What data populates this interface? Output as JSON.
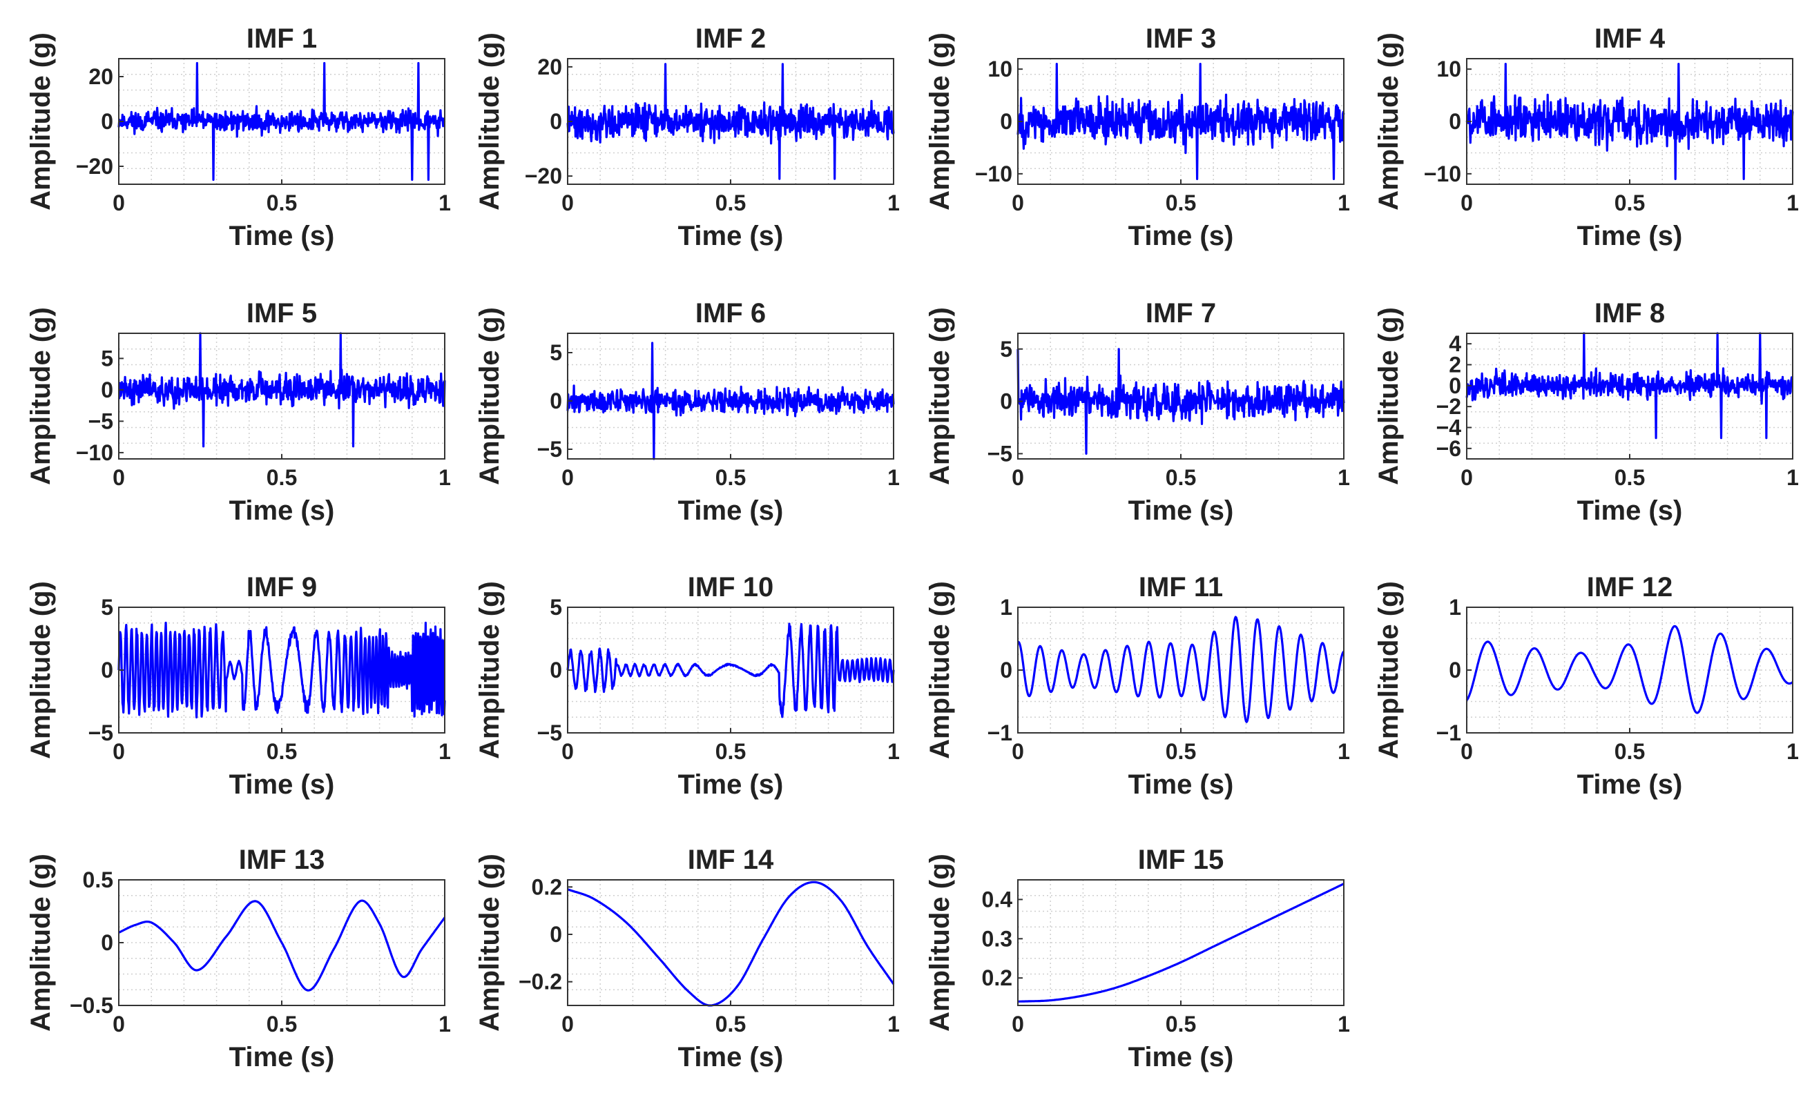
{
  "figure": {
    "xlabel": "Time (s)",
    "ylabel": "Amplitude (g)",
    "x_ticks": [
      "0",
      "0.5",
      "1"
    ],
    "line_color": "#0000ff",
    "axes_color": "#333333",
    "grid_color": "#cfcfcf"
  },
  "chart_data": [
    {
      "type": "line",
      "title": "IMF 1",
      "xlabel": "Time (s)",
      "ylabel": "Amplitude (g)",
      "xlim": [
        0,
        1
      ],
      "ylim": [
        -28,
        28
      ],
      "yticks": [
        -20,
        0,
        20
      ],
      "ytick_labels": [
        "−20",
        "0",
        "20"
      ],
      "signal": {
        "kind": "noise",
        "amp": 7,
        "spike_amp": 26,
        "seed": 11,
        "spikes": [
          0.24,
          0.29,
          0.63,
          0.9,
          0.92,
          0.95
        ]
      }
    },
    {
      "type": "line",
      "title": "IMF 2",
      "xlabel": "Time (s)",
      "ylabel": "Amplitude (g)",
      "xlim": [
        0,
        1
      ],
      "ylim": [
        -23,
        23
      ],
      "yticks": [
        -20,
        0,
        20
      ],
      "ytick_labels": [
        "−20",
        "0",
        "20"
      ],
      "signal": {
        "kind": "noise",
        "amp": 9,
        "spike_amp": 21,
        "seed": 22,
        "spikes": [
          0.3,
          0.65,
          0.66,
          0.82
        ]
      }
    },
    {
      "type": "line",
      "title": "IMF 3",
      "xlabel": "Time (s)",
      "ylabel": "Amplitude (g)",
      "xlim": [
        0,
        1
      ],
      "ylim": [
        -12,
        12
      ],
      "yticks": [
        -10,
        0,
        10
      ],
      "ytick_labels": [
        "−10",
        "0",
        "10"
      ],
      "signal": {
        "kind": "noise",
        "amp": 6,
        "spike_amp": 11,
        "seed": 33,
        "spikes": [
          0.12,
          0.55,
          0.56,
          0.97
        ]
      }
    },
    {
      "type": "line",
      "title": "IMF 4",
      "xlabel": "Time (s)",
      "ylabel": "Amplitude (g)",
      "xlim": [
        0,
        1
      ],
      "ylim": [
        -12,
        12
      ],
      "yticks": [
        -10,
        0,
        10
      ],
      "ytick_labels": [
        "−10",
        "0",
        "10"
      ],
      "signal": {
        "kind": "noise",
        "amp": 6,
        "spike_amp": 11,
        "seed": 44,
        "spikes": [
          0.12,
          0.64,
          0.65,
          0.85
        ]
      }
    },
    {
      "type": "line",
      "title": "IMF 5",
      "xlabel": "Time (s)",
      "ylabel": "Amplitude (g)",
      "xlim": [
        0,
        1
      ],
      "ylim": [
        -11,
        9
      ],
      "yticks": [
        -10,
        -5,
        0,
        5
      ],
      "ytick_labels": [
        "−10",
        "−5",
        "0",
        "5"
      ],
      "signal": {
        "kind": "noise",
        "amp": 3.5,
        "spike_amp": 9,
        "seed": 55,
        "spikes": [
          0.25,
          0.26,
          0.68,
          0.72
        ]
      }
    },
    {
      "type": "line",
      "title": "IMF 6",
      "xlabel": "Time (s)",
      "ylabel": "Amplitude (g)",
      "xlim": [
        0,
        1
      ],
      "ylim": [
        -6,
        7
      ],
      "yticks": [
        -5,
        0,
        5
      ],
      "ytick_labels": [
        "−5",
        "0",
        "5"
      ],
      "signal": {
        "kind": "noise",
        "amp": 1.8,
        "spike_amp": 6,
        "seed": 66,
        "spikes": [
          0.26,
          0.265
        ]
      }
    },
    {
      "type": "line",
      "title": "IMF 7",
      "xlabel": "Time (s)",
      "ylabel": "Amplitude (g)",
      "xlim": [
        0,
        1
      ],
      "ylim": [
        -5.5,
        6.5
      ],
      "yticks": [
        -5,
        0,
        5
      ],
      "ytick_labels": [
        "−5",
        "0",
        "5"
      ],
      "signal": {
        "kind": "noise",
        "amp": 2.4,
        "spike_amp": 5,
        "seed": 77,
        "spikes": [
          0.0,
          0.21,
          0.31
        ]
      }
    },
    {
      "type": "line",
      "title": "IMF 8",
      "xlabel": "Time (s)",
      "ylabel": "Amplitude (g)",
      "xlim": [
        0,
        1
      ],
      "ylim": [
        -7,
        5
      ],
      "yticks": [
        -6,
        -4,
        -2,
        0,
        2,
        4
      ],
      "ytick_labels": [
        "−6",
        "−4",
        "−2",
        "0",
        "2",
        "4"
      ],
      "signal": {
        "kind": "noise",
        "amp": 1.7,
        "spike_amp": 5,
        "seed": 88,
        "spikes": [
          0.36,
          0.58,
          0.77,
          0.78,
          0.9,
          0.92
        ]
      }
    },
    {
      "type": "line",
      "title": "IMF 9",
      "xlabel": "Time (s)",
      "ylabel": "Amplitude (g)",
      "xlim": [
        0,
        1
      ],
      "ylim": [
        -5,
        5
      ],
      "yticks": [
        -5,
        0,
        5
      ],
      "ytick_labels": [
        "−5",
        "0",
        "5"
      ],
      "signal": {
        "kind": "burst",
        "freq": 60,
        "seed": 99,
        "segments": [
          [
            0.0,
            0.33,
            3.8
          ],
          [
            0.33,
            0.38,
            0.8
          ],
          [
            0.38,
            0.83,
            3.6
          ],
          [
            0.83,
            0.9,
            1.5
          ],
          [
            0.9,
            1.0,
            3.8
          ]
        ]
      }
    },
    {
      "type": "line",
      "title": "IMF 10",
      "xlabel": "Time (s)",
      "ylabel": "Amplitude (g)",
      "xlim": [
        0,
        1
      ],
      "ylim": [
        -5,
        5
      ],
      "yticks": [
        -5,
        0,
        5
      ],
      "ytick_labels": [
        "−5",
        "0",
        "5"
      ],
      "signal": {
        "kind": "burst",
        "freq": 32,
        "seed": 10,
        "segments": [
          [
            0.0,
            0.15,
            1.8
          ],
          [
            0.15,
            0.65,
            0.5
          ],
          [
            0.65,
            0.83,
            3.8
          ],
          [
            0.83,
            1.0,
            1.0
          ]
        ]
      }
    },
    {
      "type": "line",
      "title": "IMF 11",
      "xlabel": "Time (s)",
      "ylabel": "Amplitude (g)",
      "xlim": [
        0,
        1
      ],
      "ylim": [
        -1,
        1
      ],
      "yticks": [
        -1,
        0,
        1
      ],
      "ytick_labels": [
        "−1",
        "0",
        "1"
      ],
      "signal": {
        "kind": "wave",
        "freq": 15,
        "phase": 1.4,
        "envelope": [
          [
            0,
            0.45
          ],
          [
            0.2,
            0.25
          ],
          [
            0.4,
            0.45
          ],
          [
            0.55,
            0.4
          ],
          [
            0.66,
            0.85
          ],
          [
            0.75,
            0.8
          ],
          [
            0.9,
            0.5
          ],
          [
            1,
            0.3
          ]
        ]
      }
    },
    {
      "type": "line",
      "title": "IMF 12",
      "xlabel": "Time (s)",
      "ylabel": "Amplitude (g)",
      "xlim": [
        0,
        1
      ],
      "ylim": [
        -1,
        1
      ],
      "yticks": [
        -1,
        0,
        1
      ],
      "ytick_labels": [
        "−1",
        "0",
        "1"
      ],
      "signal": {
        "kind": "wave",
        "freq": 7,
        "phase": -1.3,
        "envelope": [
          [
            0,
            0.5
          ],
          [
            0.2,
            0.35
          ],
          [
            0.4,
            0.25
          ],
          [
            0.55,
            0.5
          ],
          [
            0.66,
            0.75
          ],
          [
            0.8,
            0.55
          ],
          [
            1,
            0.2
          ]
        ]
      }
    },
    {
      "type": "line",
      "title": "IMF 13",
      "xlabel": "Time (s)",
      "ylabel": "Amplitude (g)",
      "xlim": [
        0,
        1
      ],
      "ylim": [
        -0.5,
        0.5
      ],
      "yticks": [
        -0.5,
        0,
        0.5
      ],
      "ytick_labels": [
        "−0.5",
        "0",
        "0.5"
      ],
      "signal": {
        "kind": "points",
        "x": [
          0,
          0.05,
          0.1,
          0.17,
          0.24,
          0.33,
          0.42,
          0.5,
          0.58,
          0.66,
          0.74,
          0.8,
          0.87,
          0.93,
          1.0
        ],
        "y": [
          0.08,
          0.14,
          0.16,
          0.0,
          -0.22,
          0.05,
          0.33,
          0.0,
          -0.38,
          -0.05,
          0.33,
          0.15,
          -0.27,
          -0.05,
          0.2
        ]
      }
    },
    {
      "type": "line",
      "title": "IMF 14",
      "xlabel": "Time (s)",
      "ylabel": "Amplitude (g)",
      "xlim": [
        0,
        1
      ],
      "ylim": [
        -0.3,
        0.23
      ],
      "yticks": [
        -0.2,
        0,
        0.2
      ],
      "ytick_labels": [
        "−0.2",
        "0",
        "0.2"
      ],
      "signal": {
        "kind": "points",
        "x": [
          0,
          0.08,
          0.18,
          0.28,
          0.37,
          0.44,
          0.52,
          0.6,
          0.68,
          0.76,
          0.84,
          0.92,
          1.0
        ],
        "y": [
          0.19,
          0.15,
          0.05,
          -0.1,
          -0.24,
          -0.3,
          -0.22,
          -0.02,
          0.16,
          0.22,
          0.14,
          -0.05,
          -0.21
        ]
      }
    },
    {
      "type": "line",
      "title": "IMF 15",
      "xlabel": "Time (s)",
      "ylabel": "Amplitude (g)",
      "xlim": [
        0,
        1
      ],
      "ylim": [
        0.13,
        0.45
      ],
      "yticks": [
        0.2,
        0.3,
        0.4
      ],
      "ytick_labels": [
        "0.2",
        "0.3",
        "0.4"
      ],
      "signal": {
        "kind": "points",
        "x": [
          0,
          0.1,
          0.2,
          0.3,
          0.4,
          0.5,
          0.6,
          0.7,
          0.8,
          0.9,
          1.0
        ],
        "y": [
          0.14,
          0.143,
          0.155,
          0.175,
          0.205,
          0.24,
          0.28,
          0.32,
          0.36,
          0.4,
          0.44
        ]
      }
    }
  ]
}
